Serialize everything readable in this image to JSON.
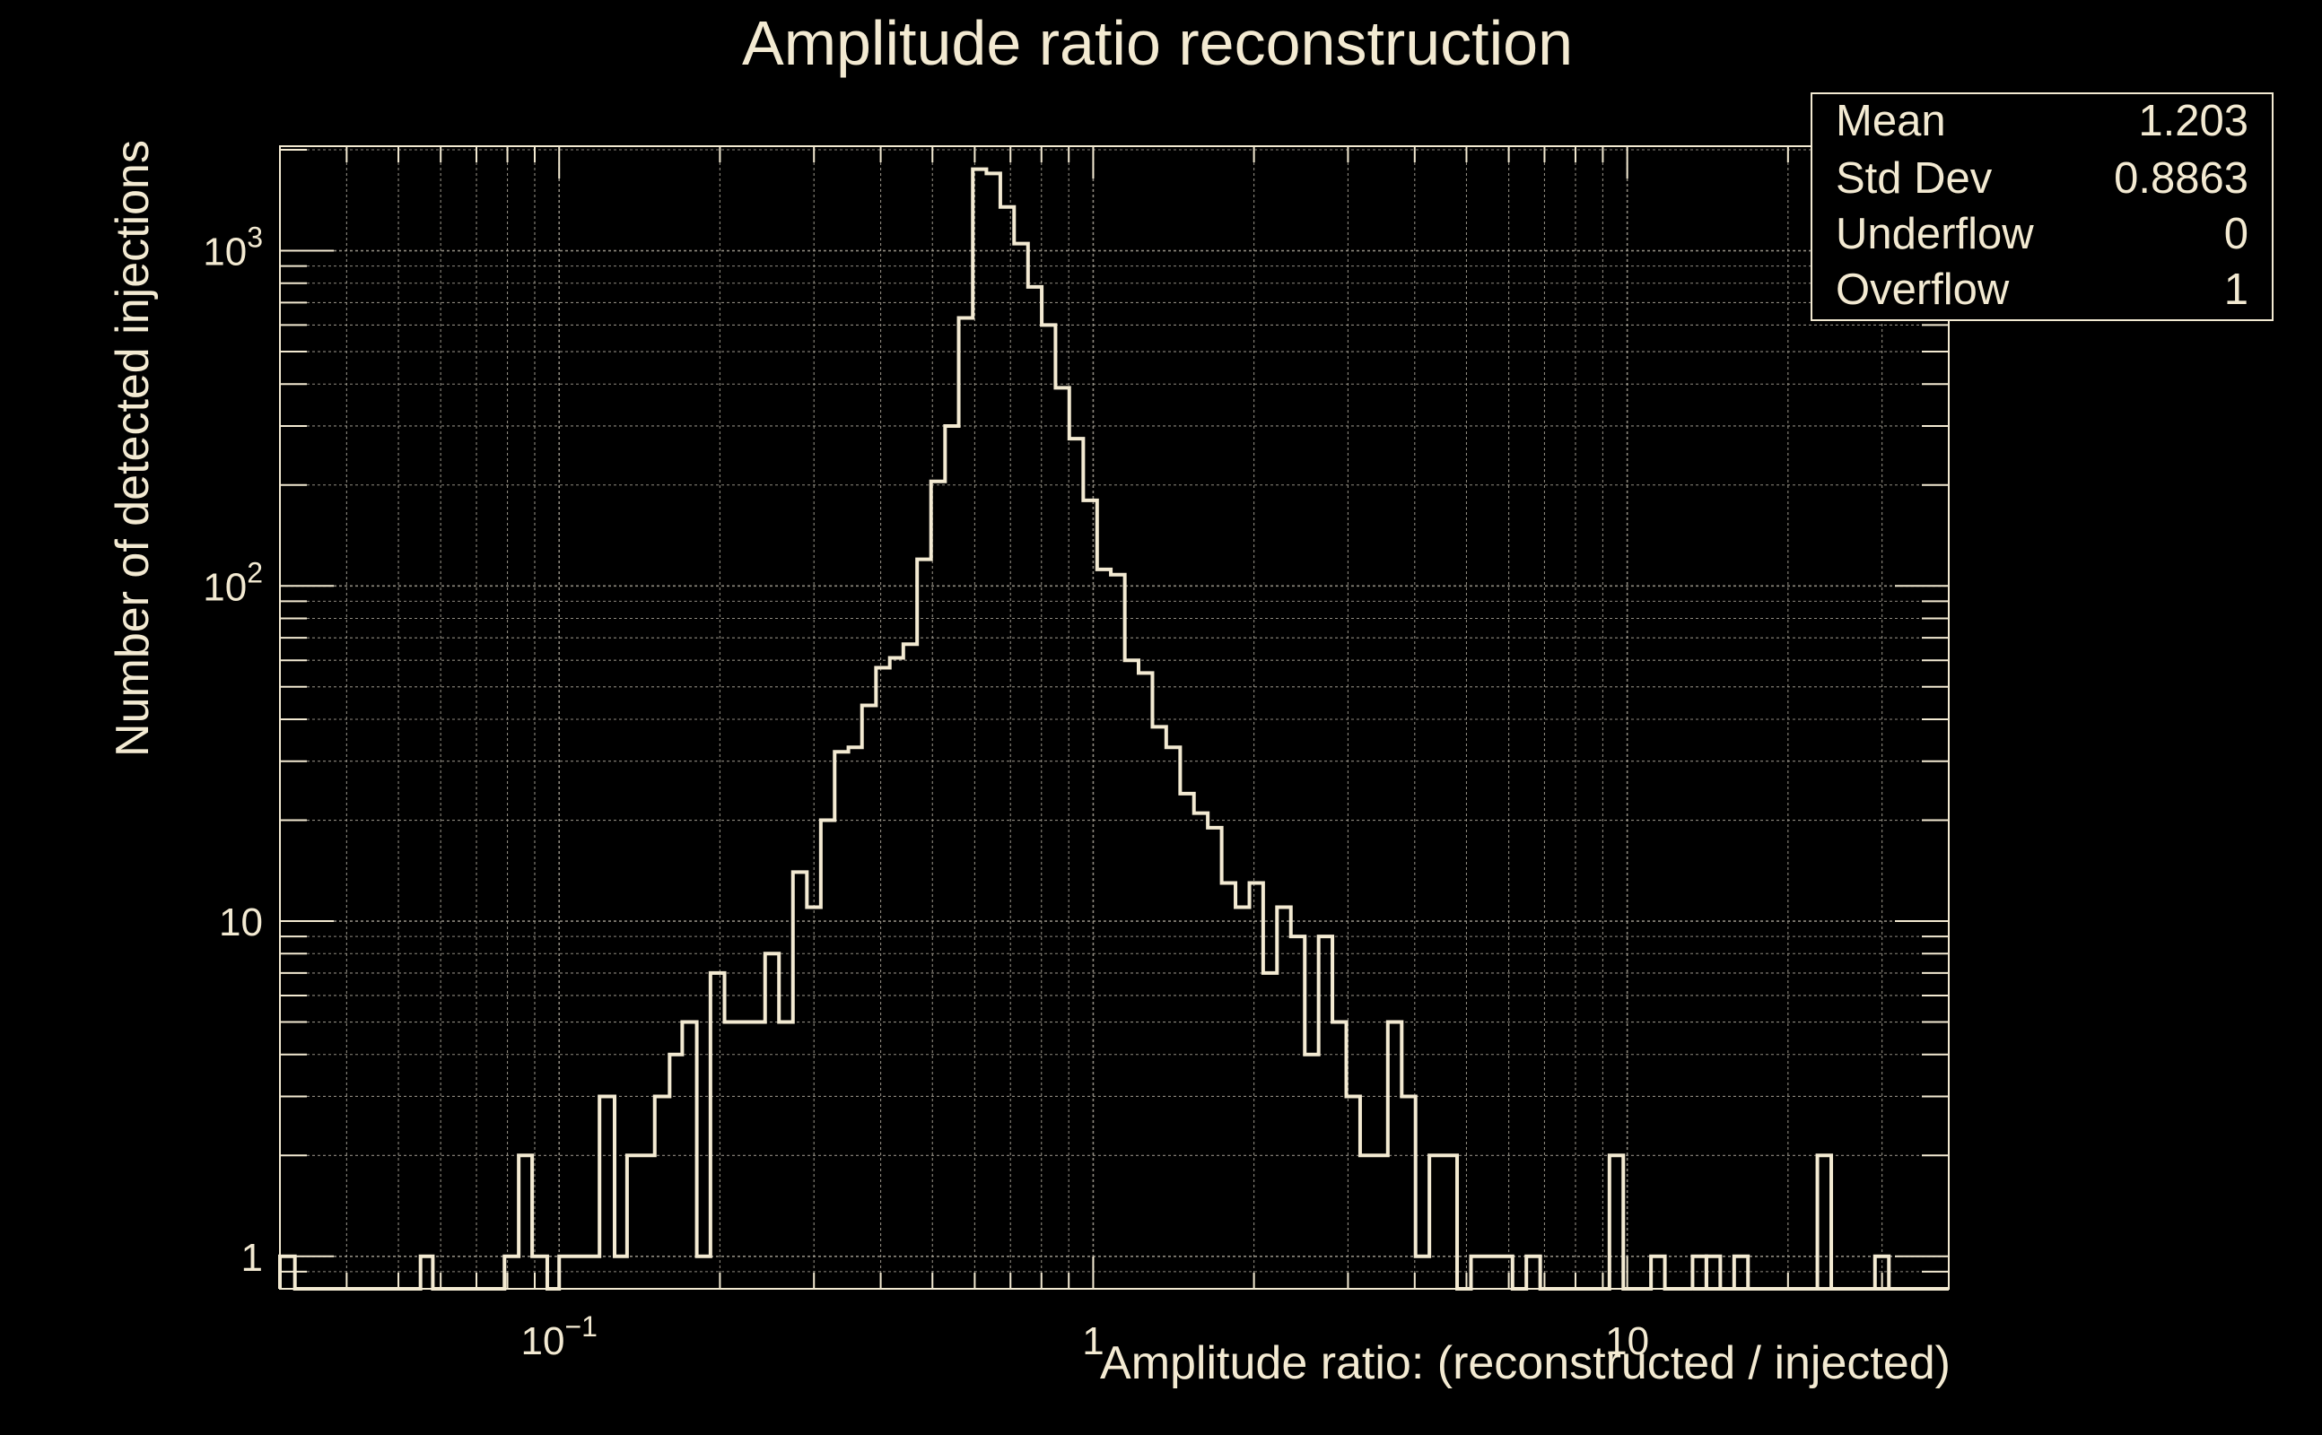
{
  "chart_data": {
    "type": "histogram-step",
    "title": "Amplitude ratio reconstruction",
    "xlabel": "Amplitude ratio: (reconstructed / injected)",
    "ylabel": "Number of detected injections",
    "x_scale": "log",
    "y_scale": "log",
    "xlim": [
      0.03,
      40
    ],
    "ylim": [
      0.8,
      2050
    ],
    "x_ticks": [
      {
        "value": 0.1,
        "base": "10",
        "exp": "−1"
      },
      {
        "value": 1,
        "base": "1",
        "exp": ""
      },
      {
        "value": 10,
        "base": "10",
        "exp": ""
      }
    ],
    "y_ticks": [
      {
        "value": 1,
        "base": "1",
        "exp": ""
      },
      {
        "value": 10,
        "base": "10",
        "exp": ""
      },
      {
        "value": 100,
        "base": "10",
        "exp": "2"
      },
      {
        "value": 1000,
        "base": "10",
        "exp": "3"
      }
    ],
    "grid": true,
    "bins": [
      [
        0.03,
        0.032,
        1
      ],
      [
        0.032,
        0.055,
        0
      ],
      [
        0.055,
        0.058,
        1
      ],
      [
        0.058,
        0.079,
        0
      ],
      [
        0.079,
        0.084,
        1
      ],
      [
        0.084,
        0.089,
        2
      ],
      [
        0.089,
        0.095,
        1
      ],
      [
        0.095,
        0.1,
        0
      ],
      [
        0.1,
        0.106,
        1
      ],
      [
        0.106,
        0.113,
        1
      ],
      [
        0.113,
        0.119,
        1
      ],
      [
        0.119,
        0.127,
        3
      ],
      [
        0.127,
        0.134,
        1
      ],
      [
        0.134,
        0.143,
        2
      ],
      [
        0.143,
        0.151,
        2
      ],
      [
        0.151,
        0.161,
        3
      ],
      [
        0.161,
        0.17,
        4
      ],
      [
        0.17,
        0.181,
        5
      ],
      [
        0.181,
        0.192,
        1
      ],
      [
        0.192,
        0.204,
        7
      ],
      [
        0.204,
        0.216,
        5
      ],
      [
        0.216,
        0.229,
        5
      ],
      [
        0.229,
        0.243,
        5
      ],
      [
        0.243,
        0.258,
        8
      ],
      [
        0.258,
        0.274,
        5
      ],
      [
        0.274,
        0.291,
        14
      ],
      [
        0.291,
        0.309,
        11
      ],
      [
        0.309,
        0.328,
        20
      ],
      [
        0.328,
        0.348,
        32
      ],
      [
        0.348,
        0.369,
        33
      ],
      [
        0.369,
        0.392,
        44
      ],
      [
        0.392,
        0.416,
        57
      ],
      [
        0.416,
        0.441,
        61
      ],
      [
        0.441,
        0.468,
        67
      ],
      [
        0.468,
        0.497,
        120
      ],
      [
        0.497,
        0.528,
        205
      ],
      [
        0.528,
        0.56,
        300
      ],
      [
        0.56,
        0.595,
        630
      ],
      [
        0.595,
        0.631,
        1750
      ],
      [
        0.631,
        0.67,
        1700
      ],
      [
        0.67,
        0.711,
        1350
      ],
      [
        0.711,
        0.755,
        1050
      ],
      [
        0.755,
        0.801,
        780
      ],
      [
        0.801,
        0.85,
        600
      ],
      [
        0.85,
        0.902,
        390
      ],
      [
        0.902,
        0.958,
        275
      ],
      [
        0.958,
        1.017,
        180
      ],
      [
        1.017,
        1.079,
        112
      ],
      [
        1.079,
        1.146,
        108
      ],
      [
        1.146,
        1.216,
        60
      ],
      [
        1.216,
        1.291,
        55
      ],
      [
        1.291,
        1.37,
        38
      ],
      [
        1.37,
        1.455,
        33
      ],
      [
        1.455,
        1.544,
        24
      ],
      [
        1.544,
        1.639,
        21
      ],
      [
        1.639,
        1.74,
        19
      ],
      [
        1.74,
        1.847,
        13
      ],
      [
        1.847,
        1.961,
        11
      ],
      [
        1.961,
        2.081,
        13
      ],
      [
        2.081,
        2.209,
        7
      ],
      [
        2.209,
        2.345,
        11
      ],
      [
        2.345,
        2.49,
        9
      ],
      [
        2.49,
        2.643,
        4
      ],
      [
        2.643,
        2.805,
        9
      ],
      [
        2.805,
        2.978,
        5
      ],
      [
        2.978,
        3.161,
        3
      ],
      [
        3.161,
        3.356,
        2
      ],
      [
        3.356,
        3.562,
        2
      ],
      [
        3.562,
        3.782,
        5
      ],
      [
        3.782,
        4.014,
        3
      ],
      [
        4.014,
        4.261,
        1
      ],
      [
        4.261,
        4.524,
        2
      ],
      [
        4.524,
        4.802,
        2
      ],
      [
        4.802,
        5.098,
        0
      ],
      [
        5.098,
        5.411,
        1
      ],
      [
        5.411,
        5.744,
        1
      ],
      [
        5.744,
        6.098,
        1
      ],
      [
        6.098,
        6.473,
        0
      ],
      [
        6.473,
        6.871,
        1
      ],
      [
        6.871,
        7.294,
        0
      ],
      [
        7.294,
        7.743,
        0
      ],
      [
        7.743,
        8.219,
        0
      ],
      [
        8.219,
        8.725,
        0
      ],
      [
        8.725,
        9.262,
        0
      ],
      [
        9.262,
        9.832,
        2
      ],
      [
        9.832,
        10.437,
        0
      ],
      [
        10.437,
        11.079,
        0
      ],
      [
        11.079,
        11.761,
        1
      ],
      [
        11.761,
        12.485,
        0
      ],
      [
        12.485,
        13.253,
        0
      ]
    ],
    "stats": [
      {
        "label": "Mean",
        "value": "1.203"
      },
      {
        "label": "Std Dev",
        "value": "0.8863"
      },
      {
        "label": "Underflow",
        "value": "0"
      },
      {
        "label": "Overflow",
        "value": "1"
      }
    ]
  }
}
